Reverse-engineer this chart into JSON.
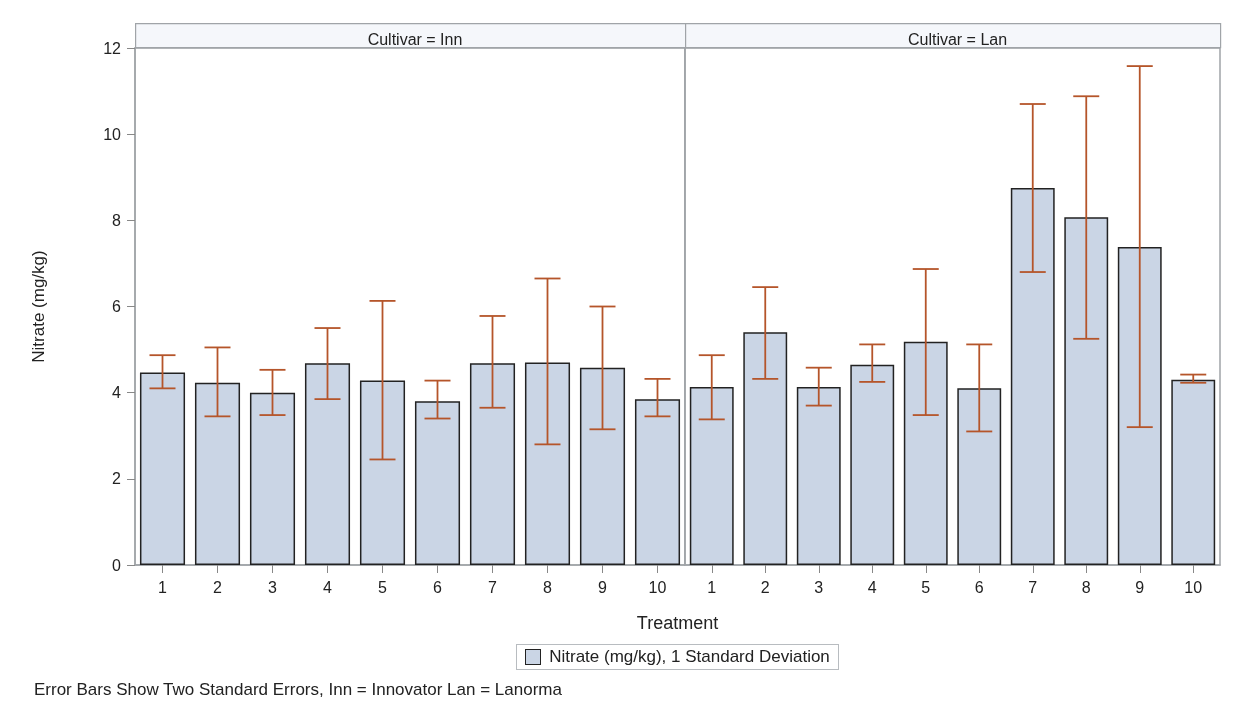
{
  "chart_data": [
    {
      "type": "bar",
      "title": "Cultivar = Inn",
      "ylabel": "Nitrate (mg/kg)",
      "xlabel": "Treatment",
      "legend": "bottom",
      "annotations": [
        "Error Bars Show Two Standard Errors, Inn = Innovator Lan = Lanorma"
      ],
      "categories": [
        "1",
        "2",
        "3",
        "4",
        "5",
        "6",
        "7",
        "8",
        "9",
        "10"
      ],
      "series": [
        {
          "name": "Nitrate (mg/kg), 1 Standard Deviation",
          "color": "#cad5e5",
          "values": [
            4.47,
            4.23,
            4.0,
            4.68,
            4.28,
            3.8,
            4.68,
            4.7,
            4.58,
            3.85
          ],
          "errors": [
            [
              4.1,
              4.87
            ],
            [
              3.45,
              5.05
            ],
            [
              3.48,
              4.53
            ],
            [
              3.85,
              5.5
            ],
            [
              2.45,
              6.13
            ],
            [
              3.4,
              4.28
            ],
            [
              3.65,
              5.78
            ],
            [
              2.8,
              6.65
            ],
            [
              3.15,
              6.0
            ],
            [
              3.45,
              4.32
            ]
          ]
        }
      ],
      "ylim": [
        0,
        12
      ],
      "yticks": [
        0,
        2,
        4,
        6,
        8,
        10,
        12
      ],
      "grid": false
    },
    {
      "type": "bar",
      "title": "Cultivar = Lan",
      "categories": [
        "1",
        "2",
        "3",
        "4",
        "5",
        "6",
        "7",
        "8",
        "9",
        "10"
      ],
      "series": [
        {
          "color": "#cad5e5",
          "values": [
            4.13,
            5.4,
            4.13,
            4.65,
            5.18,
            4.1,
            8.75,
            8.07,
            7.38,
            4.3
          ],
          "errors": [
            [
              3.38,
              4.87
            ],
            [
              4.32,
              6.45
            ],
            [
              3.7,
              4.58
            ],
            [
              4.25,
              5.12
            ],
            [
              3.48,
              6.87
            ],
            [
              3.1,
              5.12
            ],
            [
              6.8,
              10.7
            ],
            [
              5.25,
              10.88
            ],
            [
              3.2,
              11.58
            ],
            [
              4.23,
              4.42
            ]
          ]
        }
      ],
      "ylim": [
        0,
        12
      ],
      "yticks": [
        0,
        2,
        4,
        6,
        8,
        10,
        12
      ],
      "grid": false,
      "tick_labels": "x"
    }
  ]
}
